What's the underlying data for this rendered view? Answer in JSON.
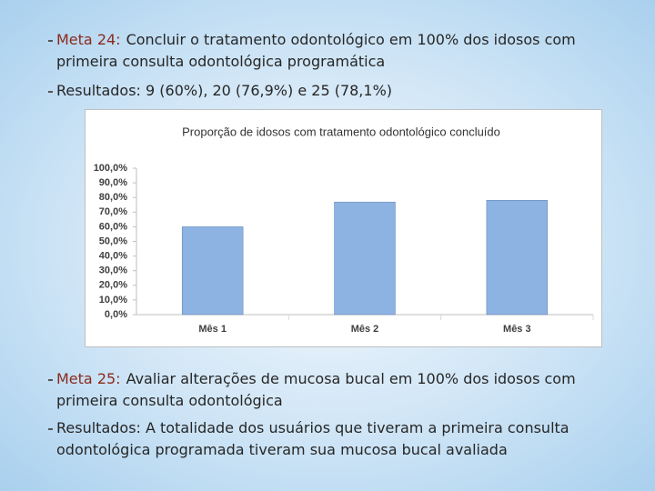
{
  "bullets": [
    {
      "label": "Meta 24:",
      "text": "Concluir o tratamento odontológico em 100% dos idosos com primeira consulta odontológica programática"
    },
    {
      "text": "Resultados: 9 (60%), 20 (76,9%) e 25 (78,1%)"
    },
    {
      "label": "Meta 25:",
      "text": "Avaliar alterações de mucosa bucal em 100% dos idosos com primeira consulta odontológica"
    },
    {
      "text": "Resultados: A totalidade dos usuários que tiveram a primeira consulta odontológica programada tiveram sua mucosa bucal avaliada"
    }
  ],
  "chart_data": {
    "type": "bar",
    "title": "Proporção de idosos com tratamento odontológico concluído",
    "categories": [
      "Mês 1",
      "Mês 2",
      "Mês 3"
    ],
    "values": [
      60,
      76.9,
      78.1
    ],
    "color": "#8db3e2",
    "ylim": [
      0,
      100
    ],
    "yticks": [
      {
        "value": 0,
        "label": "0,0%"
      },
      {
        "value": 10,
        "label": "10,0%"
      },
      {
        "value": 20,
        "label": "20,0%"
      },
      {
        "value": 30,
        "label": "30,0%"
      },
      {
        "value": 40,
        "label": "40,0%"
      },
      {
        "value": 50,
        "label": "50,0%"
      },
      {
        "value": 60,
        "label": "60,0%"
      },
      {
        "value": 70,
        "label": "70,0%"
      },
      {
        "value": 80,
        "label": "80,0%"
      },
      {
        "value": 90,
        "label": "90,0%"
      },
      {
        "value": 100,
        "label": "100,0%"
      }
    ],
    "grid": false
  }
}
